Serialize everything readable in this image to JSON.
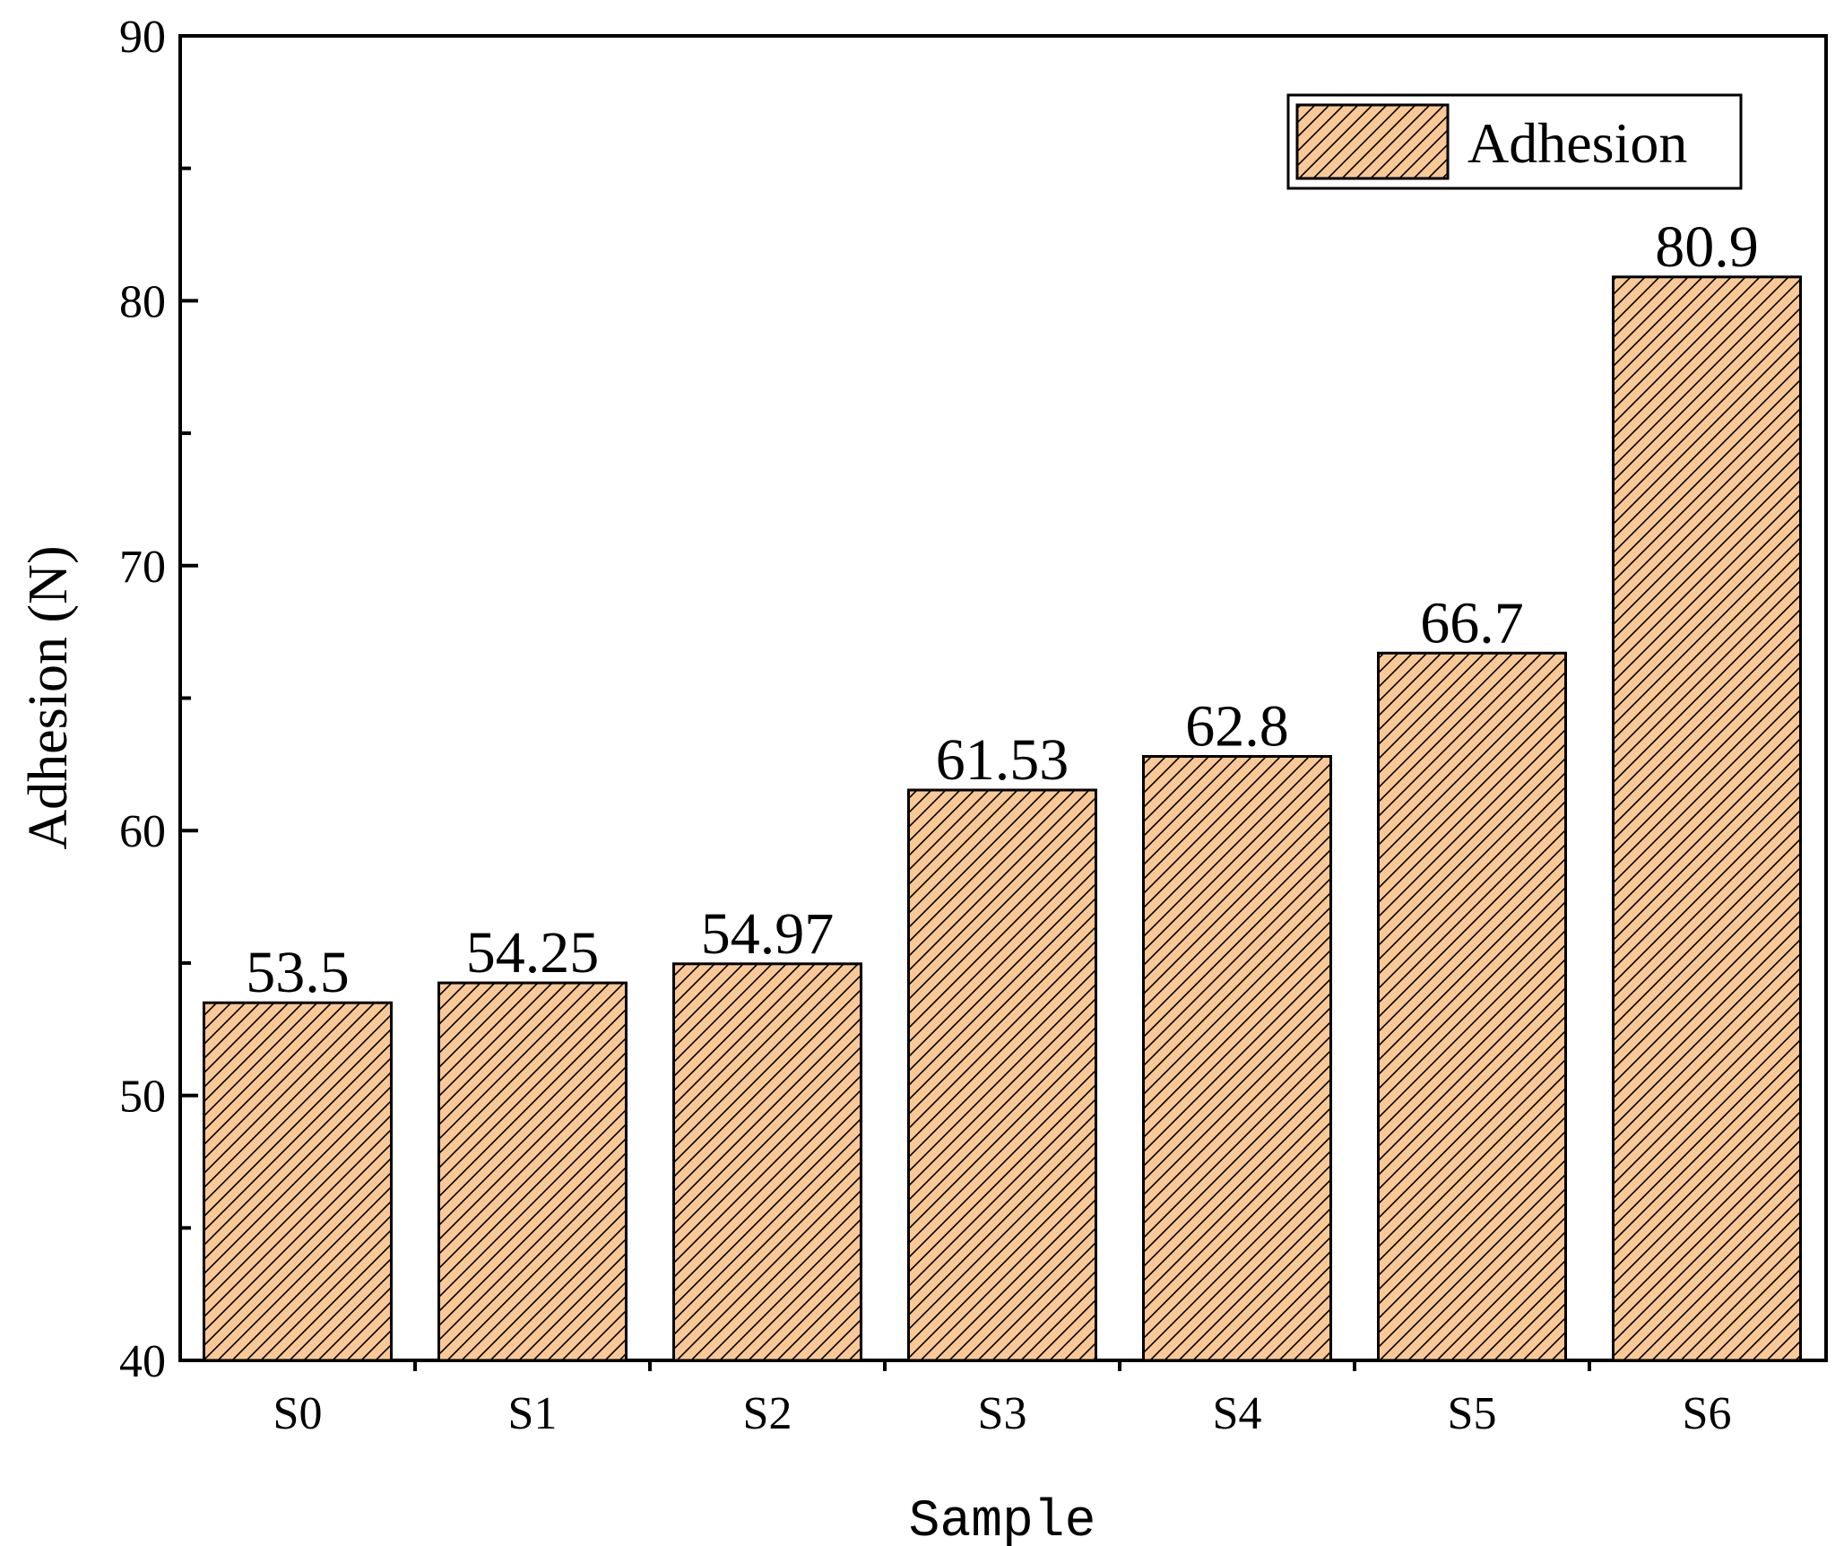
{
  "chart_data": {
    "type": "bar",
    "categories": [
      "S0",
      "S1",
      "S2",
      "S3",
      "S4",
      "S5",
      "S6"
    ],
    "series": [
      {
        "name": "Adhesion",
        "values": [
          53.5,
          54.25,
          54.97,
          61.53,
          62.8,
          66.7,
          80.9
        ],
        "data_labels": [
          "53.5",
          "54.25",
          "54.97",
          "61.53",
          "62.8",
          "66.7",
          "80.9"
        ]
      }
    ],
    "xlabel": "Sample",
    "ylabel": "Adhesion (N)",
    "ylim": [
      40,
      90
    ],
    "yticks": [
      40,
      50,
      60,
      70,
      80,
      90
    ],
    "grid": false,
    "legend_position": "top-right",
    "colors": {
      "bar_fill": "#F9C894",
      "bar_hatch": "#000000",
      "axis": "#000000"
    }
  }
}
